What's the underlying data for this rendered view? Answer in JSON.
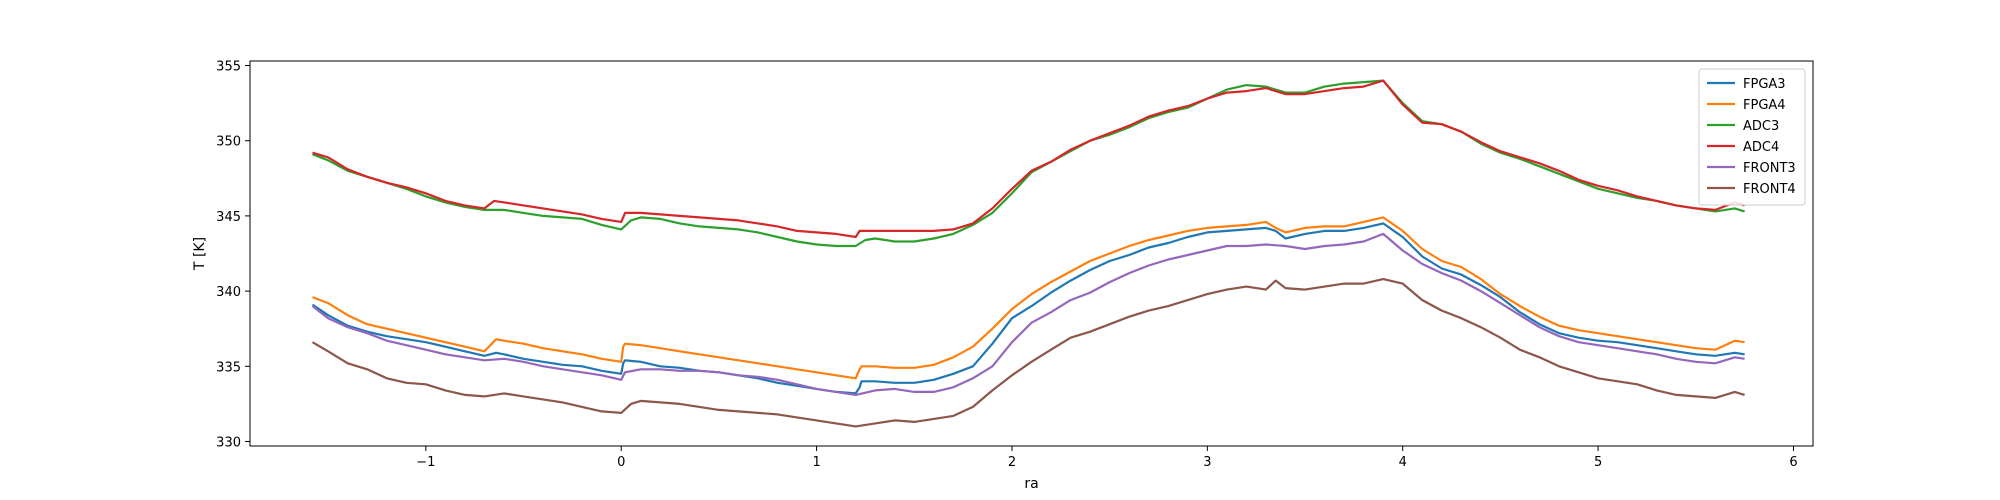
{
  "chart_data": {
    "type": "line",
    "xlabel": "ra",
    "ylabel": "T [K]",
    "xlim": [
      -1.9,
      6.1
    ],
    "ylim": [
      329.7,
      355.3
    ],
    "xticks": [
      -1,
      0,
      1,
      2,
      3,
      4,
      5,
      6
    ],
    "xtick_labels": [
      "−1",
      "0",
      "1",
      "2",
      "3",
      "4",
      "5",
      "6"
    ],
    "yticks": [
      330,
      335,
      340,
      345,
      350,
      355
    ],
    "ytick_labels": [
      "330",
      "335",
      "340",
      "345",
      "350",
      "355"
    ],
    "grid": false,
    "legend": {
      "placement": "top-right"
    },
    "series": [
      {
        "name": "FPGA3",
        "color": "#1f77b4",
        "x": [
          -1.58,
          -1.5,
          -1.4,
          -1.3,
          -1.2,
          -1.1,
          -1.0,
          -0.9,
          -0.8,
          -0.7,
          -0.64,
          -0.6,
          -0.5,
          -0.4,
          -0.3,
          -0.2,
          -0.1,
          0.0,
          0.01,
          0.02,
          0.1,
          0.2,
          0.3,
          0.4,
          0.5,
          0.6,
          0.7,
          0.8,
          0.9,
          1.0,
          1.1,
          1.2,
          1.22,
          1.23,
          1.3,
          1.4,
          1.5,
          1.6,
          1.7,
          1.8,
          1.9,
          2.0,
          2.1,
          2.2,
          2.3,
          2.4,
          2.5,
          2.6,
          2.7,
          2.8,
          2.9,
          3.0,
          3.1,
          3.2,
          3.3,
          3.35,
          3.4,
          3.5,
          3.6,
          3.7,
          3.8,
          3.9,
          4.0,
          4.1,
          4.2,
          4.3,
          4.4,
          4.5,
          4.6,
          4.7,
          4.8,
          4.9,
          5.0,
          5.1,
          5.2,
          5.3,
          5.4,
          5.5,
          5.6,
          5.7,
          5.75
        ],
        "y": [
          339.1,
          338.4,
          337.7,
          337.3,
          337.0,
          336.8,
          336.6,
          336.3,
          336.0,
          335.7,
          335.9,
          335.8,
          335.5,
          335.3,
          335.1,
          335.0,
          334.7,
          334.5,
          335.2,
          335.4,
          335.3,
          335.0,
          334.9,
          334.7,
          334.6,
          334.4,
          334.2,
          333.9,
          333.7,
          333.5,
          333.3,
          333.2,
          333.6,
          334.0,
          334.0,
          333.9,
          333.9,
          334.1,
          334.5,
          335.0,
          336.5,
          338.2,
          339.0,
          339.9,
          340.7,
          341.4,
          342.0,
          342.4,
          342.9,
          343.2,
          343.6,
          343.9,
          344.0,
          344.1,
          344.2,
          344.0,
          343.5,
          343.8,
          344.0,
          344.0,
          344.2,
          344.5,
          343.6,
          342.3,
          341.5,
          341.1,
          340.4,
          339.6,
          338.6,
          337.8,
          337.2,
          336.9,
          336.7,
          336.6,
          336.4,
          336.2,
          336.0,
          335.8,
          335.7,
          335.9,
          335.8
        ]
      },
      {
        "name": "FPGA4",
        "color": "#ff7f0e",
        "x": [
          -1.58,
          -1.5,
          -1.4,
          -1.3,
          -1.2,
          -1.1,
          -1.0,
          -0.9,
          -0.8,
          -0.7,
          -0.64,
          -0.6,
          -0.5,
          -0.4,
          -0.3,
          -0.2,
          -0.1,
          0.0,
          0.01,
          0.02,
          0.1,
          0.2,
          0.3,
          0.4,
          0.5,
          0.6,
          0.7,
          0.8,
          0.9,
          1.0,
          1.1,
          1.2,
          1.22,
          1.23,
          1.3,
          1.4,
          1.5,
          1.6,
          1.7,
          1.8,
          1.9,
          2.0,
          2.1,
          2.2,
          2.3,
          2.4,
          2.5,
          2.6,
          2.7,
          2.8,
          2.9,
          3.0,
          3.1,
          3.2,
          3.3,
          3.35,
          3.4,
          3.5,
          3.6,
          3.7,
          3.8,
          3.9,
          4.0,
          4.1,
          4.2,
          4.3,
          4.4,
          4.5,
          4.6,
          4.7,
          4.8,
          4.9,
          5.0,
          5.1,
          5.2,
          5.3,
          5.4,
          5.5,
          5.6,
          5.7,
          5.75
        ],
        "y": [
          339.6,
          339.2,
          338.4,
          337.8,
          337.5,
          337.2,
          336.9,
          336.6,
          336.3,
          336.0,
          336.8,
          336.7,
          336.5,
          336.2,
          336.0,
          335.8,
          335.5,
          335.3,
          336.3,
          336.5,
          336.4,
          336.2,
          336.0,
          335.8,
          335.6,
          335.4,
          335.2,
          335.0,
          334.8,
          334.6,
          334.4,
          334.2,
          334.8,
          335.0,
          335.0,
          334.9,
          334.9,
          335.1,
          335.6,
          336.3,
          337.5,
          338.8,
          339.8,
          340.6,
          341.3,
          342.0,
          342.5,
          343.0,
          343.4,
          343.7,
          344.0,
          344.2,
          344.3,
          344.4,
          344.6,
          344.2,
          343.9,
          344.2,
          344.3,
          344.3,
          344.6,
          344.9,
          344.0,
          342.8,
          342.0,
          341.6,
          340.8,
          339.8,
          339.0,
          338.3,
          337.7,
          337.4,
          337.2,
          337.0,
          336.8,
          336.6,
          336.4,
          336.2,
          336.1,
          336.7,
          336.6
        ]
      },
      {
        "name": "ADC3",
        "color": "#2ca02c",
        "x": [
          -1.58,
          -1.5,
          -1.4,
          -1.3,
          -1.2,
          -1.1,
          -1.0,
          -0.9,
          -0.8,
          -0.7,
          -0.6,
          -0.5,
          -0.4,
          -0.3,
          -0.2,
          -0.1,
          0.0,
          0.05,
          0.1,
          0.2,
          0.3,
          0.4,
          0.5,
          0.6,
          0.7,
          0.8,
          0.9,
          1.0,
          1.1,
          1.2,
          1.25,
          1.3,
          1.4,
          1.5,
          1.6,
          1.7,
          1.8,
          1.9,
          2.0,
          2.1,
          2.2,
          2.3,
          2.4,
          2.5,
          2.6,
          2.7,
          2.8,
          2.9,
          3.0,
          3.1,
          3.2,
          3.3,
          3.4,
          3.5,
          3.6,
          3.7,
          3.8,
          3.9,
          4.0,
          4.1,
          4.2,
          4.3,
          4.4,
          4.5,
          4.6,
          4.7,
          4.8,
          4.9,
          5.0,
          5.1,
          5.2,
          5.3,
          5.4,
          5.5,
          5.6,
          5.7,
          5.75
        ],
        "y": [
          349.1,
          348.7,
          348.0,
          347.6,
          347.2,
          346.8,
          346.3,
          345.9,
          345.6,
          345.4,
          345.4,
          345.2,
          345.0,
          344.9,
          344.8,
          344.4,
          344.1,
          344.7,
          344.9,
          344.8,
          344.5,
          344.3,
          344.2,
          344.1,
          343.9,
          343.6,
          343.3,
          343.1,
          343.0,
          343.0,
          343.4,
          343.5,
          343.3,
          343.3,
          343.5,
          343.8,
          344.4,
          345.2,
          346.5,
          347.9,
          348.6,
          349.3,
          350.0,
          350.4,
          350.9,
          351.5,
          351.9,
          352.2,
          352.8,
          353.4,
          353.7,
          353.6,
          353.2,
          353.2,
          353.6,
          353.8,
          353.9,
          354.0,
          352.5,
          351.3,
          351.1,
          350.6,
          349.8,
          349.2,
          348.8,
          348.3,
          347.8,
          347.3,
          346.8,
          346.5,
          346.2,
          346.0,
          345.7,
          345.5,
          345.3,
          345.5,
          345.3
        ]
      },
      {
        "name": "ADC4",
        "color": "#d62728",
        "x": [
          -1.58,
          -1.5,
          -1.4,
          -1.3,
          -1.2,
          -1.1,
          -1.0,
          -0.9,
          -0.8,
          -0.7,
          -0.65,
          -0.6,
          -0.5,
          -0.4,
          -0.3,
          -0.2,
          -0.1,
          0.0,
          0.02,
          0.1,
          0.2,
          0.3,
          0.4,
          0.5,
          0.6,
          0.7,
          0.8,
          0.9,
          1.0,
          1.1,
          1.2,
          1.22,
          1.3,
          1.4,
          1.5,
          1.6,
          1.7,
          1.8,
          1.9,
          2.0,
          2.1,
          2.2,
          2.3,
          2.4,
          2.5,
          2.6,
          2.7,
          2.8,
          2.9,
          3.0,
          3.1,
          3.2,
          3.3,
          3.4,
          3.5,
          3.6,
          3.7,
          3.8,
          3.9,
          4.0,
          4.1,
          4.2,
          4.3,
          4.4,
          4.5,
          4.6,
          4.7,
          4.8,
          4.9,
          5.0,
          5.1,
          5.2,
          5.3,
          5.4,
          5.5,
          5.6,
          5.7,
          5.75
        ],
        "y": [
          349.2,
          348.9,
          348.1,
          347.6,
          347.2,
          346.9,
          346.5,
          346.0,
          345.7,
          345.5,
          346.0,
          345.9,
          345.7,
          345.5,
          345.3,
          345.1,
          344.8,
          344.6,
          345.2,
          345.2,
          345.1,
          345.0,
          344.9,
          344.8,
          344.7,
          344.5,
          344.3,
          344.0,
          343.9,
          343.8,
          343.6,
          344.0,
          344.0,
          344.0,
          344.0,
          344.0,
          344.1,
          344.5,
          345.5,
          346.8,
          348.0,
          348.6,
          349.4,
          350.0,
          350.5,
          351.0,
          351.6,
          352.0,
          352.3,
          352.8,
          353.2,
          353.3,
          353.5,
          353.1,
          353.1,
          353.3,
          353.5,
          353.6,
          354.0,
          352.4,
          351.2,
          351.1,
          350.6,
          349.9,
          349.3,
          348.9,
          348.5,
          348.0,
          347.4,
          347.0,
          346.7,
          346.3,
          346.0,
          345.7,
          345.5,
          345.4,
          345.9,
          345.7
        ]
      },
      {
        "name": "FRONT3",
        "color": "#9467bd",
        "x": [
          -1.58,
          -1.5,
          -1.4,
          -1.3,
          -1.2,
          -1.1,
          -1.0,
          -0.9,
          -0.8,
          -0.7,
          -0.6,
          -0.5,
          -0.4,
          -0.3,
          -0.2,
          -0.1,
          0.0,
          0.02,
          0.1,
          0.2,
          0.3,
          0.4,
          0.5,
          0.6,
          0.7,
          0.8,
          0.9,
          1.0,
          1.1,
          1.2,
          1.3,
          1.4,
          1.5,
          1.6,
          1.7,
          1.8,
          1.9,
          2.0,
          2.1,
          2.2,
          2.3,
          2.4,
          2.5,
          2.6,
          2.7,
          2.8,
          2.9,
          3.0,
          3.1,
          3.2,
          3.3,
          3.4,
          3.5,
          3.6,
          3.7,
          3.8,
          3.9,
          4.0,
          4.1,
          4.2,
          4.3,
          4.4,
          4.5,
          4.6,
          4.7,
          4.8,
          4.9,
          5.0,
          5.1,
          5.2,
          5.3,
          5.4,
          5.5,
          5.6,
          5.7,
          5.75
        ],
        "y": [
          339.0,
          338.2,
          337.6,
          337.2,
          336.7,
          336.4,
          336.1,
          335.8,
          335.6,
          335.4,
          335.5,
          335.3,
          335.0,
          334.8,
          334.6,
          334.4,
          334.1,
          334.6,
          334.8,
          334.8,
          334.7,
          334.7,
          334.6,
          334.4,
          334.3,
          334.1,
          333.8,
          333.5,
          333.3,
          333.1,
          333.4,
          333.5,
          333.3,
          333.3,
          333.6,
          334.2,
          335.0,
          336.6,
          337.9,
          338.6,
          339.4,
          339.9,
          340.6,
          341.2,
          341.7,
          342.1,
          342.4,
          342.7,
          343.0,
          343.0,
          343.1,
          343.0,
          342.8,
          343.0,
          343.1,
          343.3,
          343.8,
          342.7,
          341.8,
          341.2,
          340.7,
          340.0,
          339.2,
          338.4,
          337.6,
          337.0,
          336.6,
          336.4,
          336.2,
          336.0,
          335.8,
          335.5,
          335.3,
          335.2,
          335.6,
          335.5
        ]
      },
      {
        "name": "FRONT4",
        "color": "#8c564b",
        "x": [
          -1.58,
          -1.5,
          -1.4,
          -1.3,
          -1.2,
          -1.1,
          -1.0,
          -0.9,
          -0.8,
          -0.7,
          -0.6,
          -0.5,
          -0.4,
          -0.3,
          -0.2,
          -0.1,
          0.0,
          0.05,
          0.1,
          0.2,
          0.3,
          0.4,
          0.5,
          0.6,
          0.7,
          0.8,
          0.9,
          1.0,
          1.1,
          1.2,
          1.3,
          1.4,
          1.5,
          1.6,
          1.7,
          1.8,
          1.9,
          2.0,
          2.1,
          2.2,
          2.3,
          2.4,
          2.5,
          2.6,
          2.7,
          2.8,
          2.9,
          3.0,
          3.1,
          3.2,
          3.3,
          3.35,
          3.4,
          3.5,
          3.6,
          3.7,
          3.8,
          3.9,
          4.0,
          4.1,
          4.2,
          4.3,
          4.4,
          4.5,
          4.6,
          4.7,
          4.8,
          4.9,
          5.0,
          5.1,
          5.2,
          5.3,
          5.4,
          5.5,
          5.6,
          5.7,
          5.75
        ],
        "y": [
          336.6,
          336.0,
          335.2,
          334.8,
          334.2,
          333.9,
          333.8,
          333.4,
          333.1,
          333.0,
          333.2,
          333.0,
          332.8,
          332.6,
          332.3,
          332.0,
          331.9,
          332.5,
          332.7,
          332.6,
          332.5,
          332.3,
          332.1,
          332.0,
          331.9,
          331.8,
          331.6,
          331.4,
          331.2,
          331.0,
          331.2,
          331.4,
          331.3,
          331.5,
          331.7,
          332.3,
          333.4,
          334.4,
          335.3,
          336.1,
          336.9,
          337.3,
          337.8,
          338.3,
          338.7,
          339.0,
          339.4,
          339.8,
          340.1,
          340.3,
          340.1,
          340.7,
          340.2,
          340.1,
          340.3,
          340.5,
          340.5,
          340.8,
          340.5,
          339.4,
          338.7,
          338.2,
          337.6,
          336.9,
          336.1,
          335.6,
          335.0,
          334.6,
          334.2,
          334.0,
          333.8,
          333.4,
          333.1,
          333.0,
          332.9,
          333.3,
          333.1
        ]
      }
    ]
  }
}
